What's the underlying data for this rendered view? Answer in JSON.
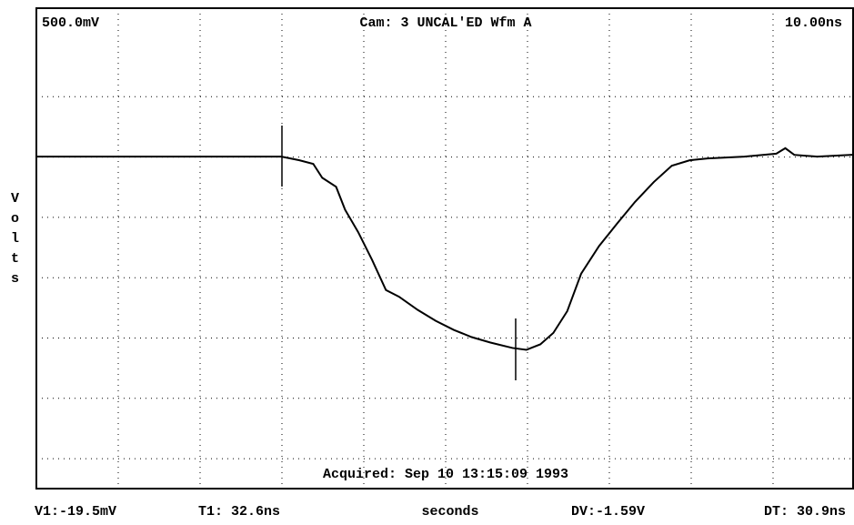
{
  "chart_data": {
    "type": "line",
    "top_left": "500.0mV",
    "top_center": "Cam: 3 UNCAL'ED Wfm A",
    "top_right": "10.00ns",
    "acquired": "Acquired: Sep 10 13:15:09 1993",
    "y_label": "Volts",
    "x_label": "seconds",
    "readouts": [
      "V1:-19.5mV",
      "T1: 32.6ns",
      "DV:-1.59V",
      "DT: 30.9ns"
    ],
    "xlim": [
      0,
      10
    ],
    "ylim": [
      -5.5,
      2.46
    ],
    "series": [
      {
        "name": "Wfm A",
        "color": "#000000",
        "x": [
          0,
          3.0,
          3.22,
          3.39,
          3.5,
          3.67,
          3.78,
          3.94,
          4.11,
          4.28,
          4.44,
          4.67,
          4.89,
          5.11,
          5.33,
          5.56,
          5.83,
          6.0,
          6.17,
          6.33,
          6.5,
          6.67,
          6.89,
          7.11,
          7.33,
          7.56,
          7.78,
          8.0,
          8.22,
          8.67,
          9.06,
          9.17,
          9.28,
          9.56,
          9.99
        ],
        "values": [
          0,
          0,
          -0.06,
          -0.12,
          -0.35,
          -0.5,
          -0.88,
          -1.25,
          -1.71,
          -2.21,
          -2.32,
          -2.54,
          -2.72,
          -2.87,
          -2.99,
          -3.08,
          -3.17,
          -3.2,
          -3.11,
          -2.92,
          -2.56,
          -1.94,
          -1.48,
          -1.11,
          -0.75,
          -0.42,
          -0.15,
          -0.06,
          -0.03,
          0,
          0.05,
          0.14,
          0.03,
          0,
          0.03
        ]
      }
    ]
  }
}
